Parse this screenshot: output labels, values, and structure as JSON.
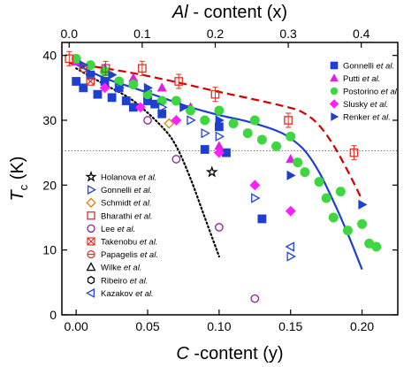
{
  "chart_data": {
    "type": "scatter",
    "xlabel_bottom": [
      "C",
      " -content (y)"
    ],
    "xlabel_top": [
      "Al",
      " - content (x)"
    ],
    "ylabel": [
      "T",
      "c",
      " (K)"
    ],
    "x_bottom": {
      "range": [
        -0.01,
        0.225
      ],
      "ticks": [
        0.0,
        0.05,
        0.1,
        0.15,
        0.2
      ],
      "tick_labels": [
        "0.00",
        "0.05",
        "0.10",
        "0.15",
        "0.20"
      ]
    },
    "x_top": {
      "range": [
        -0.01,
        0.45
      ],
      "ticks": [
        0.0,
        0.1,
        0.2,
        0.3,
        0.4
      ],
      "tick_labels": [
        "0.0",
        "0.1",
        "0.2",
        "0.3",
        "0.4"
      ]
    },
    "y": {
      "range": [
        0,
        42
      ],
      "ticks": [
        0,
        10,
        20,
        30,
        40
      ],
      "tick_labels": [
        "0",
        "10",
        "20",
        "30",
        "40"
      ]
    },
    "reference_line_y": 25.3,
    "legend_right": [
      {
        "label": "Gonnelli et al.",
        "marker": "square",
        "color": "#1f3fd0",
        "filled": true
      },
      {
        "label": "Putti et al.",
        "marker": "triangle-up",
        "color": "#e020e0",
        "filled": true
      },
      {
        "label": "Postorino et al.",
        "marker": "circle",
        "color": "#3fd73f",
        "filled": true
      },
      {
        "label": "Slusky et al.",
        "marker": "diamond",
        "color": "#ff20ff",
        "filled": true
      },
      {
        "label": "Renker et al.",
        "marker": "triangle-right",
        "color": "#1f3fd0",
        "filled": true
      }
    ],
    "legend_left": [
      {
        "label": "Holanova et al.",
        "marker": "star",
        "color": "#000000",
        "filled": false
      },
      {
        "label": "Gonnelli et al.",
        "marker": "triangle-right",
        "color": "#2244dd",
        "filled": false
      },
      {
        "label": "Schmidt et al.",
        "marker": "diamond",
        "color": "#e08000",
        "filled": false
      },
      {
        "label": "Bharathi et al.",
        "marker": "square",
        "color": "#e03020",
        "filled": false
      },
      {
        "label": "Lee et al.",
        "marker": "circle",
        "color": "#8a2090",
        "filled": false
      },
      {
        "label": "Takenobu et al.",
        "marker": "square-x",
        "color": "#e03020",
        "filled": false
      },
      {
        "label": "Papagelis et al.",
        "marker": "circle-bar",
        "color": "#e03020",
        "filled": false
      },
      {
        "label": "Wilke et al.",
        "marker": "triangle-up",
        "color": "#000000",
        "filled": false
      },
      {
        "label": "Ribeiro et al.",
        "marker": "hexagon",
        "color": "#000000",
        "filled": false
      },
      {
        "label": "Kazakov et al.",
        "marker": "triangle-left",
        "color": "#2244dd",
        "filled": false
      }
    ],
    "curves": [
      {
        "style": "solid",
        "color": "#1f3fd0",
        "axis": "bottom",
        "x": [
          0.0,
          0.02,
          0.04,
          0.06,
          0.08,
          0.1,
          0.12,
          0.14,
          0.15,
          0.16,
          0.17,
          0.18,
          0.19,
          0.2
        ],
        "y": [
          38.6,
          36.5,
          35.0,
          33.5,
          32.0,
          30.8,
          29.8,
          28.4,
          27.2,
          25.3,
          22.0,
          17.5,
          12.5,
          7.0
        ]
      },
      {
        "style": "dashed",
        "color": "#d00000",
        "axis": "top",
        "x": [
          0.0,
          0.05,
          0.1,
          0.15,
          0.2,
          0.25,
          0.3,
          0.32,
          0.34,
          0.36,
          0.38,
          0.4
        ],
        "y": [
          38.8,
          38.0,
          37.0,
          35.8,
          34.5,
          33.3,
          32.0,
          31.2,
          29.5,
          26.5,
          22.5,
          18.0
        ]
      },
      {
        "style": "dotted",
        "color": "#000000",
        "axis": "bottom",
        "x": [
          0.0,
          0.02,
          0.04,
          0.06,
          0.07,
          0.08,
          0.09,
          0.1
        ],
        "y": [
          38.0,
          35.5,
          33.0,
          29.0,
          26.0,
          21.0,
          15.0,
          9.0
        ]
      }
    ],
    "series_filled": [
      {
        "marker": "square",
        "color": "#1f3fd0",
        "x": [
          0.0,
          0.005,
          0.01,
          0.015,
          0.02,
          0.025,
          0.03,
          0.035,
          0.04,
          0.05,
          0.05,
          0.055,
          0.06,
          0.09,
          0.1,
          0.105,
          0.13
        ],
        "y": [
          36.0,
          35.0,
          37.0,
          34.0,
          36.0,
          33.5,
          35.0,
          33.0,
          32.0,
          34.0,
          33.0,
          32.5,
          31.0,
          25.5,
          29.0,
          25.0,
          14.8
        ]
      },
      {
        "marker": "triangle-up",
        "color": "#e020e0",
        "x": [
          0.0,
          0.02,
          0.04,
          0.06,
          0.08,
          0.1,
          0.15
        ],
        "y": [
          39.0,
          38.0,
          36.5,
          35.0,
          32.0,
          26.0,
          24.0
        ]
      },
      {
        "marker": "circle",
        "color": "#3fd73f",
        "x": [
          0.0,
          0.01,
          0.02,
          0.03,
          0.04,
          0.05,
          0.06,
          0.07,
          0.08,
          0.09,
          0.1,
          0.11,
          0.12,
          0.125,
          0.13,
          0.14,
          0.15,
          0.155,
          0.16,
          0.17,
          0.175,
          0.18,
          0.185,
          0.19,
          0.2,
          0.205,
          0.21
        ],
        "y": [
          39.5,
          38.5,
          37.5,
          36.0,
          35.5,
          34.0,
          33.0,
          33.0,
          31.5,
          30.0,
          31.5,
          29.5,
          28.0,
          30.0,
          27.0,
          26.0,
          27.5,
          23.5,
          22.0,
          20.5,
          18.0,
          15.0,
          19.0,
          13.0,
          14.0,
          11.0,
          10.5
        ]
      },
      {
        "marker": "diamond",
        "color": "#ff20ff",
        "x": [
          0.02,
          0.045,
          0.07,
          0.1,
          0.125,
          0.15
        ],
        "y": [
          35.0,
          32.0,
          30.0,
          25.0,
          20.0,
          16.0
        ]
      },
      {
        "marker": "triangle-right",
        "color": "#1f3fd0",
        "x": [
          0.005,
          0.025,
          0.05,
          0.075,
          0.1,
          0.15,
          0.2
        ],
        "y": [
          38.5,
          37.0,
          35.0,
          32.0,
          30.0,
          21.5,
          17.0
        ]
      }
    ],
    "series_open": [
      {
        "marker": "square",
        "color": "#e03020",
        "axis": "top",
        "x": [
          0.0,
          0.05,
          0.1,
          0.15,
          0.2,
          0.3,
          0.39
        ],
        "y": [
          39.5,
          38.0,
          38.0,
          36.0,
          34.0,
          30.0,
          25.0
        ]
      },
      {
        "marker": "triangle-right",
        "color": "#2244dd",
        "x": [
          0.01,
          0.03,
          0.06,
          0.08,
          0.09,
          0.1,
          0.125,
          0.15
        ],
        "y": [
          37.0,
          35.0,
          32.0,
          30.0,
          28.0,
          27.5,
          18.0,
          9.0
        ]
      },
      {
        "marker": "triangle-left",
        "color": "#2244dd",
        "x": [
          0.15
        ],
        "y": [
          10.5
        ]
      },
      {
        "marker": "circle",
        "color": "#8a2090",
        "x": [
          0.05,
          0.07,
          0.1,
          0.125
        ],
        "y": [
          30.0,
          24.0,
          13.5,
          2.5
        ]
      },
      {
        "marker": "star",
        "color": "#000000",
        "x": [
          0.095
        ],
        "y": [
          22.0
        ]
      },
      {
        "marker": "diamond",
        "color": "#e08000",
        "x": [
          0.065
        ],
        "y": [
          29.5
        ]
      },
      {
        "marker": "square-x",
        "color": "#e03020",
        "x": [
          0.01
        ],
        "y": [
          36.0
        ]
      },
      {
        "marker": "circle-bar",
        "color": "#e03020",
        "x": [
          0.005
        ],
        "y": [
          38.0
        ]
      }
    ]
  }
}
